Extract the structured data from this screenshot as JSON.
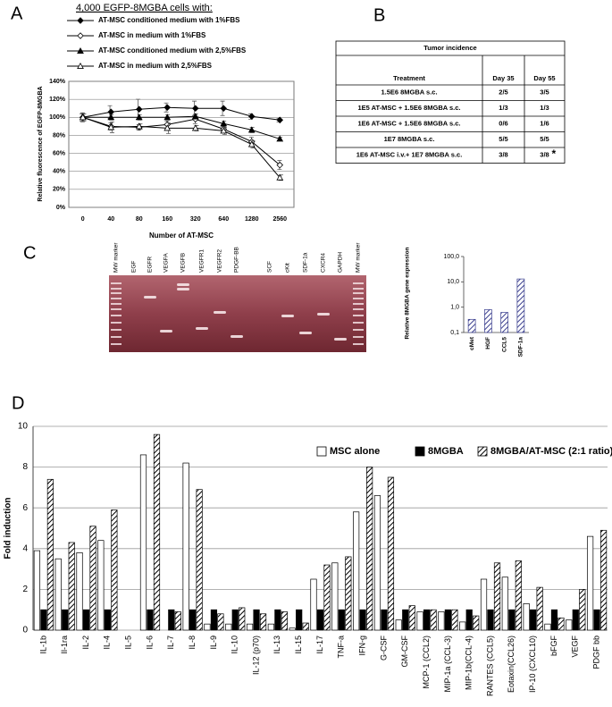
{
  "panel_labels": [
    "A",
    "B",
    "C",
    "D"
  ],
  "chart_data": [
    {
      "type": "line",
      "title": "4,000 EGFP-8MGBA cells with:",
      "y_label": "Relative fluorescence of EGFP-8MGBA",
      "x_label": "Number of AT-MSC",
      "categories": [
        "0",
        "40",
        "80",
        "160",
        "320",
        "640",
        "1280",
        "2560"
      ],
      "ylim": [
        0,
        140
      ],
      "yticks": [
        {
          "value": 0,
          "label": "0%"
        },
        {
          "value": 20,
          "label": "20%"
        },
        {
          "value": 40,
          "label": "40%"
        },
        {
          "value": 60,
          "label": "60%"
        },
        {
          "value": 80,
          "label": "80%"
        },
        {
          "value": 100,
          "label": "100%"
        },
        {
          "value": 120,
          "label": "120%"
        },
        {
          "value": 140,
          "label": "140%"
        }
      ],
      "grid": true,
      "series": [
        {
          "name": "AT-MSC conditioned medium with 1%FBS",
          "color": "#000000",
          "marker": "diamond",
          "filled": true,
          "values": [
            100,
            106,
            109,
            111,
            110,
            110,
            101,
            97
          ],
          "errors": [
            4,
            7,
            11,
            5,
            8,
            8,
            3,
            2
          ]
        },
        {
          "name": "AT-MSC in  medium with 1%FBS",
          "color": "#000000",
          "marker": "diamond",
          "filled": false,
          "values": [
            100,
            90,
            89,
            92,
            98,
            87,
            73,
            47
          ],
          "errors": [
            5,
            4,
            3,
            4,
            5,
            3,
            5,
            5
          ]
        },
        {
          "name": "AT-MSC conditioned medium with 2,5%FBS",
          "color": "#000000",
          "marker": "triangle",
          "filled": true,
          "values": [
            100,
            100,
            100,
            100,
            101,
            93,
            86,
            76
          ],
          "errors": [
            4,
            3,
            3,
            3,
            3,
            3,
            3,
            2
          ]
        },
        {
          "name": "AT-MSC in  medium with 2,5%FBS",
          "color": "#000000",
          "marker": "triangle",
          "filled": false,
          "values": [
            100,
            89,
            90,
            88,
            88,
            85,
            70,
            33
          ],
          "errors": [
            4,
            6,
            3,
            6,
            3,
            4,
            4,
            3
          ]
        }
      ]
    },
    {
      "type": "bar",
      "y_label": "Relative 8MGBA gene expression",
      "categories": [
        "cMet",
        "HGF",
        "CCL5",
        "SDF-1a"
      ],
      "values": [
        0.33,
        0.8,
        0.62,
        13
      ],
      "color": "#3b3f8f",
      "hatch": true,
      "log": true,
      "ylim": [
        0.1,
        100
      ],
      "yticks": [
        {
          "value": 0.1,
          "label": "0,1"
        },
        {
          "value": 1,
          "label": "1,0"
        },
        {
          "value": 10,
          "label": "10,0"
        },
        {
          "value": 100,
          "label": "100,0"
        }
      ]
    },
    {
      "type": "grouped-bar",
      "y_label": "Fold induction",
      "categories": [
        "IL-1b",
        "Il-1ra",
        "IL-2",
        "IL-4",
        "IL-5",
        "IL-6",
        "IL-7",
        "IL-8",
        "IL-9",
        "IL-10",
        "IL-12 (p70)",
        "IL-13",
        "IL-15",
        "IL-17",
        "TNF-a",
        "IFN-g",
        "G-CSF",
        "GM-CSF",
        "MCP-1 (CCL2)",
        "MIP-1a (CCL-3)",
        "MIP-1b(CCL-4)",
        "RANTES (CCL5)",
        "Eotaxin(CCL26)",
        "IP-10 (CXCL10)",
        "bFGF",
        "VEGF",
        "PDGF bb"
      ],
      "ylim": [
        0,
        10
      ],
      "yticks": [
        0,
        2,
        4,
        6,
        8,
        10
      ],
      "grid": true,
      "legend": "top-right",
      "series": [
        {
          "name": "MSC alone",
          "color": "#ffffff",
          "hatch": false,
          "values": [
            3.9,
            3.5,
            3.8,
            4.4,
            null,
            8.6,
            0,
            8.2,
            0.3,
            0.3,
            0.3,
            0.3,
            0.1,
            2.5,
            3.3,
            5.8,
            6.6,
            0.5,
            0.9,
            0.9,
            0.4,
            2.5,
            2.6,
            1.3,
            0.3,
            0.5,
            4.6
          ]
        },
        {
          "name": "8MGBA",
          "color": "#000000",
          "hatch": false,
          "values": [
            1,
            1,
            1,
            1,
            null,
            1,
            1,
            1,
            1,
            1,
            1,
            1,
            1,
            1,
            1,
            1,
            1,
            1,
            1,
            1,
            1,
            1,
            1,
            1,
            1,
            1,
            1
          ]
        },
        {
          "name": "8MGBA/AT-MSC (2:1 ratio)",
          "color": "#000000",
          "hatch": true,
          "values": [
            7.4,
            4.3,
            5.1,
            5.9,
            null,
            9.6,
            0.9,
            6.9,
            0.8,
            1.1,
            0.8,
            0.9,
            0.35,
            3.2,
            3.6,
            8.0,
            7.5,
            1.2,
            1.0,
            1.0,
            0.7,
            3.3,
            3.4,
            2.1,
            0.6,
            2.0,
            4.9
          ]
        }
      ]
    }
  ],
  "table": {
    "title": "Tumor incidence",
    "header": [
      "Treatment",
      "Day 35",
      "Day 55"
    ],
    "rows": [
      [
        "1.5E6 8MGBA s.c.",
        "2/5",
        "3/5"
      ],
      [
        "1E5 AT-MSC + 1.5E6 8MGBA s.c.",
        "1/3",
        "1/3"
      ],
      [
        "1E6 AT-MSC + 1.5E6 8MGBA s.c.",
        "0/6",
        "1/6"
      ],
      [
        "1E7 8MGBA s.c.",
        "5/5",
        "5/5"
      ],
      [
        "1E6 AT-MSC i.v.+ 1E7 8MGBA s.c.",
        "3/8",
        "3/8"
      ]
    ],
    "note_mark": "*"
  },
  "gel": {
    "lanes": [
      "MW marker",
      "EGF",
      "EGFR",
      "VEGFA",
      "VEGFB",
      "VEGFR1",
      "VEGFR2",
      "PDGF-BB",
      "SCF",
      "cKit",
      "SDF-1à",
      "CXCR4",
      "GAPDH",
      "MW marker"
    ]
  }
}
